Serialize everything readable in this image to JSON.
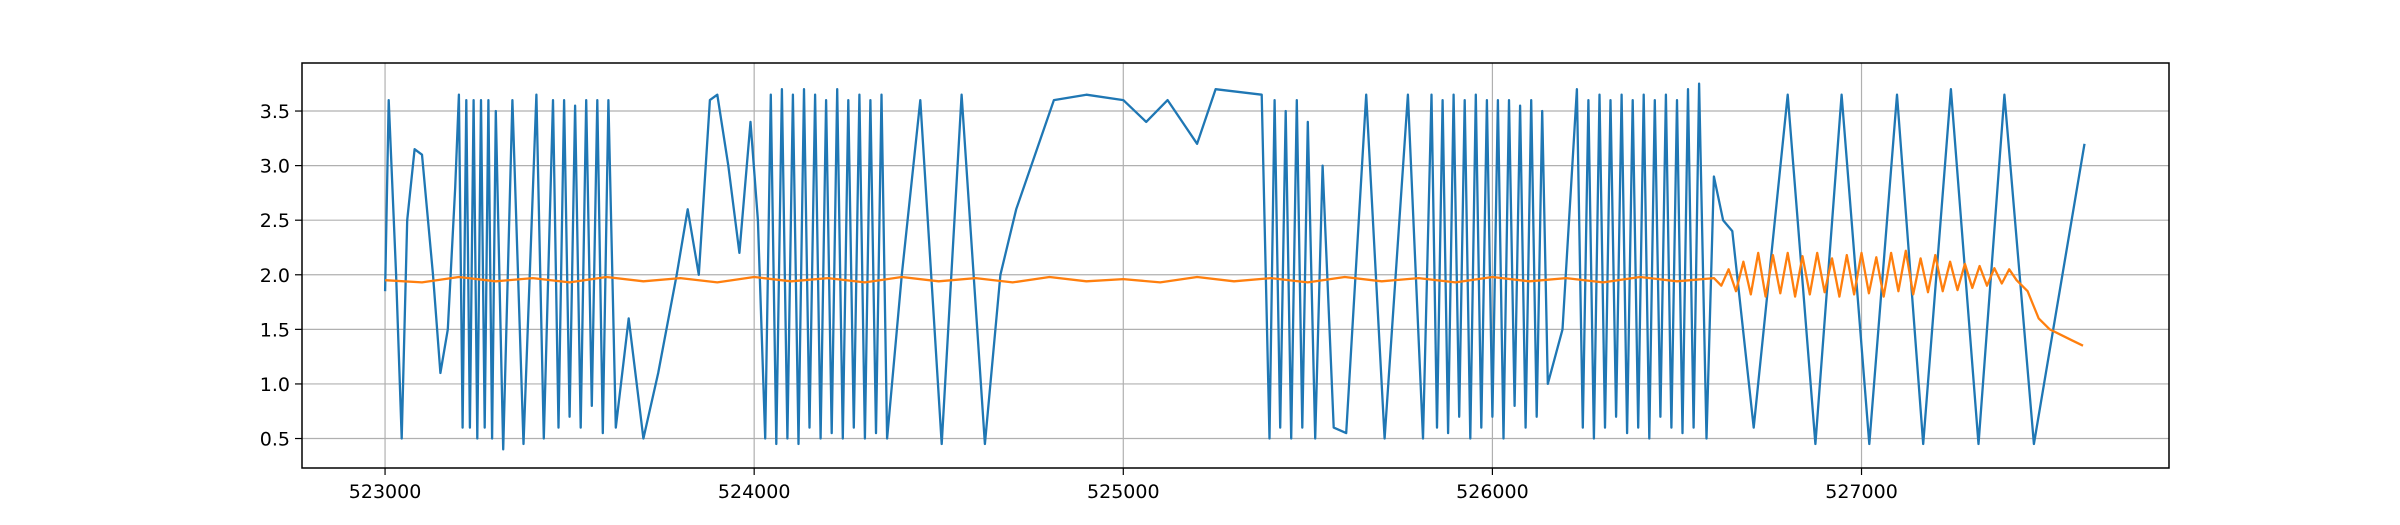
{
  "chart_data": {
    "type": "line",
    "xlim": [
      522775,
      527833
    ],
    "ylim": [
      0.23,
      3.94
    ],
    "xticks": [
      523000,
      524000,
      525000,
      526000,
      527000
    ],
    "yticks": [
      0.5,
      {
        "value": 1,
        "label": "1.0"
      },
      1.5,
      {
        "value": 2,
        "label": "2.0"
      },
      2.5,
      {
        "value": 3,
        "label": "3.0"
      },
      3.5
    ],
    "grid": true,
    "series": [
      {
        "color": "#1f77b4",
        "x": [
          523000,
          523010,
          523030,
          523045,
          523060,
          523080,
          523100,
          523130,
          523150,
          523170,
          523190,
          523200,
          523210,
          523220,
          523230,
          523240,
          523250,
          523260,
          523270,
          523280,
          523290,
          523300,
          523320,
          523345,
          523375,
          523410,
          523430,
          523455,
          523470,
          523485,
          523500,
          523515,
          523530,
          523545,
          523560,
          523575,
          523590,
          523605,
          523625,
          523660,
          523700,
          523740,
          523790,
          523820,
          523850,
          523880,
          523900,
          523930,
          523960,
          523990,
          524010,
          524030,
          524045,
          524060,
          524075,
          524090,
          524105,
          524120,
          524135,
          524150,
          524165,
          524180,
          524195,
          524210,
          524225,
          524240,
          524255,
          524270,
          524285,
          524300,
          524315,
          524330,
          524345,
          524360,
          524400,
          524450,
          524508,
          524562,
          524625,
          524667,
          524710,
          524812,
          524900,
          525000,
          525062,
          525120,
          525200,
          525250,
          525375,
          525396,
          525410,
          525425,
          525440,
          525455,
          525470,
          525485,
          525500,
          525520,
          525540,
          525570,
          525604,
          525658,
          525708,
          525771,
          525812,
          525835,
          525850,
          525865,
          525880,
          525895,
          525910,
          525925,
          525940,
          525955,
          525970,
          525985,
          526000,
          526015,
          526030,
          526045,
          526060,
          526075,
          526090,
          526105,
          526120,
          526135,
          526150,
          526190,
          526229,
          526245,
          526260,
          526275,
          526290,
          526305,
          526320,
          526335,
          526350,
          526365,
          526380,
          526395,
          526410,
          526425,
          526440,
          526455,
          526470,
          526485,
          526500,
          526515,
          526530,
          526545,
          526560,
          526580,
          526600,
          526625,
          526650,
          526708,
          526800,
          526875,
          526946,
          527021,
          527096,
          527167,
          527242,
          527317,
          527387,
          527467,
          527604
        ],
        "values": [
          1.85,
          3.6,
          2.0,
          0.5,
          2.5,
          3.15,
          3.1,
          2.0,
          1.1,
          1.5,
          2.8,
          3.65,
          0.6,
          3.6,
          0.6,
          3.6,
          0.5,
          3.6,
          0.6,
          3.6,
          0.5,
          3.5,
          0.4,
          3.6,
          0.45,
          3.65,
          0.5,
          3.6,
          0.6,
          3.6,
          0.7,
          3.55,
          0.6,
          3.6,
          0.8,
          3.6,
          0.55,
          3.6,
          0.6,
          1.6,
          0.5,
          1.1,
          2.0,
          2.6,
          2.0,
          3.6,
          3.65,
          3.0,
          2.2,
          3.4,
          2.5,
          0.5,
          3.65,
          0.45,
          3.7,
          0.5,
          3.65,
          0.45,
          3.7,
          0.6,
          3.65,
          0.5,
          3.6,
          0.55,
          3.7,
          0.5,
          3.6,
          0.6,
          3.65,
          0.5,
          3.6,
          0.55,
          3.65,
          0.5,
          2.0,
          3.6,
          0.45,
          3.65,
          0.45,
          2.0,
          2.6,
          3.6,
          3.65,
          3.6,
          3.4,
          3.6,
          3.2,
          3.7,
          3.65,
          0.5,
          3.6,
          0.6,
          3.5,
          0.5,
          3.6,
          0.6,
          3.4,
          0.5,
          3.0,
          0.6,
          0.55,
          3.65,
          0.5,
          3.65,
          0.5,
          3.65,
          0.6,
          3.6,
          0.55,
          3.65,
          0.7,
          3.6,
          0.5,
          3.65,
          0.6,
          3.6,
          0.7,
          3.6,
          0.5,
          3.6,
          0.8,
          3.55,
          0.6,
          3.6,
          0.7,
          3.5,
          1.0,
          1.5,
          3.7,
          0.6,
          3.6,
          0.5,
          3.65,
          0.6,
          3.6,
          0.7,
          3.65,
          0.55,
          3.6,
          0.6,
          3.65,
          0.5,
          3.6,
          0.7,
          3.65,
          0.6,
          3.6,
          0.55,
          3.7,
          0.6,
          3.75,
          0.5,
          2.9,
          2.5,
          2.4,
          0.6,
          3.65,
          0.45,
          3.65,
          0.45,
          3.65,
          0.45,
          3.7,
          0.45,
          3.65,
          0.45,
          3.2
        ]
      },
      {
        "color": "#ff7f0e",
        "x": [
          523000,
          523100,
          523200,
          523300,
          523400,
          523500,
          523600,
          523700,
          523800,
          523900,
          524000,
          524100,
          524200,
          524300,
          524400,
          524500,
          524600,
          524700,
          524800,
          524900,
          525000,
          525100,
          525200,
          525300,
          525400,
          525500,
          525600,
          525700,
          525800,
          525900,
          526000,
          526100,
          526200,
          526300,
          526400,
          526500,
          526600,
          526620,
          526640,
          526660,
          526680,
          526700,
          526720,
          526740,
          526760,
          526780,
          526800,
          526820,
          526840,
          526860,
          526880,
          526900,
          526920,
          526940,
          526960,
          526980,
          527000,
          527020,
          527040,
          527060,
          527080,
          527100,
          527120,
          527140,
          527160,
          527180,
          527200,
          527220,
          527240,
          527260,
          527280,
          527300,
          527320,
          527340,
          527360,
          527380,
          527400,
          527420,
          527450,
          527480,
          527510,
          527540,
          527570,
          527600
        ],
        "values": [
          1.95,
          1.93,
          1.98,
          1.94,
          1.97,
          1.93,
          1.98,
          1.94,
          1.97,
          1.93,
          1.98,
          1.94,
          1.97,
          1.93,
          1.98,
          1.94,
          1.97,
          1.93,
          1.98,
          1.94,
          1.96,
          1.93,
          1.98,
          1.94,
          1.97,
          1.93,
          1.98,
          1.94,
          1.97,
          1.93,
          1.98,
          1.94,
          1.97,
          1.93,
          1.98,
          1.94,
          1.97,
          1.9,
          2.05,
          1.85,
          2.12,
          1.82,
          2.2,
          1.8,
          2.18,
          1.83,
          2.2,
          1.8,
          2.17,
          1.82,
          2.2,
          1.84,
          2.15,
          1.8,
          2.18,
          1.82,
          2.2,
          1.83,
          2.16,
          1.8,
          2.2,
          1.85,
          2.22,
          1.82,
          2.15,
          1.84,
          2.18,
          1.85,
          2.12,
          1.86,
          2.1,
          1.88,
          2.08,
          1.9,
          2.06,
          1.92,
          2.05,
          1.95,
          1.85,
          1.6,
          1.5,
          1.45,
          1.4,
          1.35
        ]
      }
    ]
  }
}
